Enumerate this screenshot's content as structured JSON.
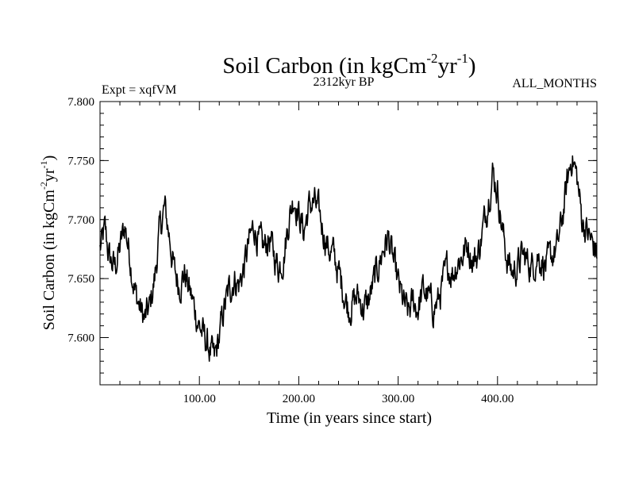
{
  "chart_data": {
    "type": "line",
    "title": "Soil Carbon (in kgCm",
    "title_sup1": "-2",
    "title_mid": "yr",
    "title_sup2": "-1",
    "title_end": ")",
    "subtitle_left": "Expt = xqfVM",
    "subtitle_center": "2312kyr BP",
    "subtitle_right": "ALL_MONTHS",
    "xlabel": "Time (in years since start)",
    "ylabel": "Soil Carbon (in kgCm",
    "ylabel_sup1": "-2",
    "ylabel_mid": "yr",
    "ylabel_sup2": "-1",
    "ylabel_end": ")",
    "xlim": [
      0,
      500
    ],
    "ylim": [
      7.56,
      7.8
    ],
    "x_ticks": [
      100,
      200,
      300,
      400
    ],
    "x_tick_labels": [
      "100.00",
      "200.00",
      "300.00",
      "400.00"
    ],
    "y_ticks": [
      7.6,
      7.65,
      7.7,
      7.75,
      7.8
    ],
    "y_tick_labels": [
      "7.600",
      "7.650",
      "7.700",
      "7.750",
      "7.800"
    ],
    "grid": false,
    "line_color": "#000000",
    "series": [
      {
        "name": "Soil Carbon",
        "x": [
          0,
          5,
          10,
          15,
          20,
          25,
          30,
          35,
          40,
          45,
          50,
          55,
          60,
          65,
          70,
          75,
          80,
          85,
          90,
          95,
          100,
          105,
          110,
          115,
          120,
          125,
          130,
          135,
          140,
          145,
          150,
          155,
          160,
          165,
          170,
          175,
          180,
          185,
          190,
          195,
          200,
          205,
          210,
          215,
          220,
          225,
          230,
          235,
          240,
          245,
          250,
          255,
          260,
          265,
          270,
          275,
          280,
          285,
          290,
          295,
          300,
          305,
          310,
          315,
          320,
          325,
          330,
          335,
          340,
          345,
          350,
          355,
          360,
          365,
          370,
          375,
          380,
          385,
          390,
          395,
          400,
          405,
          410,
          415,
          420,
          425,
          430,
          435,
          440,
          445,
          450,
          455,
          460,
          465,
          470,
          475,
          480,
          485,
          490,
          495,
          500
        ],
        "values": [
          7.675,
          7.69,
          7.665,
          7.66,
          7.675,
          7.695,
          7.67,
          7.64,
          7.625,
          7.615,
          7.625,
          7.65,
          7.69,
          7.71,
          7.685,
          7.655,
          7.645,
          7.655,
          7.64,
          7.625,
          7.61,
          7.6,
          7.59,
          7.58,
          7.6,
          7.625,
          7.64,
          7.65,
          7.645,
          7.66,
          7.68,
          7.695,
          7.68,
          7.675,
          7.685,
          7.67,
          7.66,
          7.67,
          7.7,
          7.72,
          7.705,
          7.69,
          7.71,
          7.715,
          7.705,
          7.69,
          7.675,
          7.67,
          7.655,
          7.64,
          7.625,
          7.63,
          7.635,
          7.625,
          7.63,
          7.645,
          7.66,
          7.675,
          7.685,
          7.665,
          7.645,
          7.63,
          7.62,
          7.63,
          7.625,
          7.64,
          7.635,
          7.625,
          7.63,
          7.645,
          7.66,
          7.655,
          7.665,
          7.67,
          7.68,
          7.665,
          7.67,
          7.69,
          7.715,
          7.74,
          7.725,
          7.69,
          7.665,
          7.655,
          7.66,
          7.67,
          7.665,
          7.66,
          7.67,
          7.665,
          7.66,
          7.67,
          7.675,
          7.7,
          7.73,
          7.755,
          7.735,
          7.7,
          7.69,
          7.68,
          7.672
        ]
      }
    ]
  }
}
